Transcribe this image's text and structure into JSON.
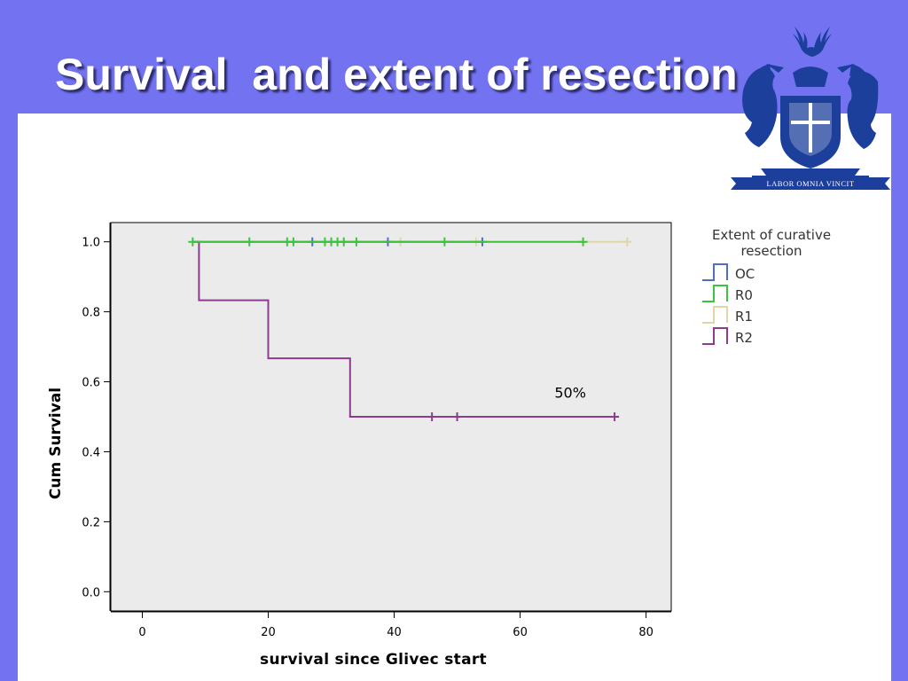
{
  "slide": {
    "title": "Survival  and extent of resection"
  },
  "crest": {
    "motto": "LABOR OMNIA VINCIT",
    "color": "#1d3f9c"
  },
  "colors": {
    "background": "#7373f2",
    "plot_area": "#ebebeb",
    "OC": "#4f6fc2",
    "R0": "#3cc43c",
    "R1": "#e0d7a8",
    "R2": "#8c3c8c"
  },
  "chart_data": {
    "type": "line",
    "subtype": "kaplan-meier",
    "xlabel": "survival since Glivec start",
    "ylabel": "Cum Survival",
    "xlim": [
      -5,
      84
    ],
    "ylim": [
      -0.055,
      1.055
    ],
    "x_ticks": [
      "0",
      "20",
      "40",
      "60",
      "80"
    ],
    "x_tick_values": [
      0,
      20,
      40,
      60,
      80
    ],
    "y_ticks": [
      "0.0",
      "0.2",
      "0.4",
      "0.6",
      "0.8",
      "1.0"
    ],
    "y_tick_values": [
      0.0,
      0.2,
      0.4,
      0.6,
      0.8,
      1.0
    ],
    "legend": {
      "title": "Extent of curative resection",
      "title_lines": [
        "Extent of curative",
        "resection"
      ],
      "position": "right"
    },
    "series": [
      {
        "name": "OC",
        "steps": [
          [
            8,
            1.0
          ],
          [
            54,
            1.0
          ]
        ],
        "censored": [
          [
            27,
            1.0
          ],
          [
            39,
            1.0
          ],
          [
            54,
            1.0
          ]
        ]
      },
      {
        "name": "R0",
        "steps": [
          [
            8,
            1.0
          ],
          [
            70,
            1.0
          ]
        ],
        "censored": [
          [
            8,
            1.0
          ],
          [
            17,
            1.0
          ],
          [
            23,
            1.0
          ],
          [
            24,
            1.0
          ],
          [
            29,
            1.0
          ],
          [
            30,
            1.0
          ],
          [
            31,
            1.0
          ],
          [
            32,
            1.0
          ],
          [
            34,
            1.0
          ],
          [
            48,
            1.0
          ],
          [
            70,
            1.0
          ]
        ]
      },
      {
        "name": "R1",
        "steps": [
          [
            8,
            1.0
          ],
          [
            77,
            1.0
          ]
        ],
        "censored": [
          [
            41,
            1.0
          ],
          [
            53,
            1.0
          ],
          [
            77,
            1.0
          ]
        ]
      },
      {
        "name": "R2",
        "steps": [
          [
            8,
            1.0
          ],
          [
            9,
            1.0
          ],
          [
            9,
            0.833
          ],
          [
            20,
            0.833
          ],
          [
            20,
            0.667
          ],
          [
            33,
            0.667
          ],
          [
            33,
            0.5
          ],
          [
            75,
            0.5
          ]
        ],
        "censored": [
          [
            46,
            0.5
          ],
          [
            50,
            0.5
          ],
          [
            75,
            0.5
          ]
        ]
      }
    ],
    "annotations": [
      {
        "text": "50%",
        "x": 68,
        "y": 0.555
      }
    ]
  }
}
